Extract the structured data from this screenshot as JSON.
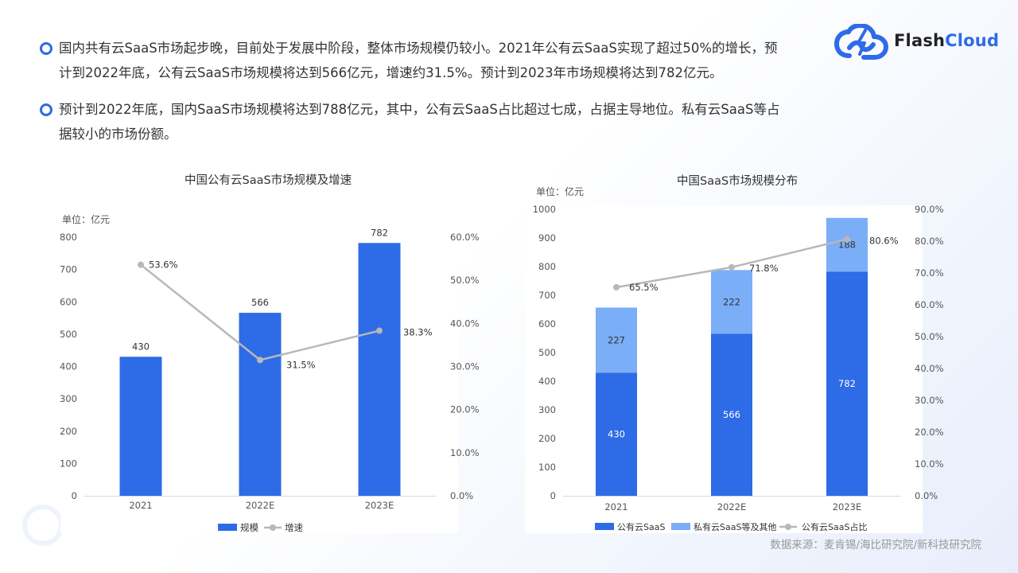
{
  "bullets": [
    {
      "line1": "国内共有云SaaS市场起步晚，目前处于发展中阶段，整体市场规模仍较小。2021年公有云SaaS实现了超过50%的增长，预",
      "line2": "计到2022年底，公有云SaaS市场规模将达到566亿元，增速约31.5%。预计到2023年市场规模将达到782亿元。"
    },
    {
      "line1": "预计到2022年底，国内SaaS市场规模将达到788亿元，其中，公有云SaaS占比超过七成，占据主导地位。私有云SaaS等占",
      "line2": "据较小的市场份额。"
    }
  ],
  "logo": {
    "part1": "Flash",
    "part2": "Cloud"
  },
  "source": "数据来源：麦肯锡/海比研究院/新科技研究院",
  "colors": {
    "primary": "#2e6be6",
    "secondary": "#7aaef7",
    "line": "#b8b8b8",
    "text": "#333333"
  },
  "chart_data": [
    {
      "type": "bar",
      "title": "中国公有云SaaS市场规模及增速",
      "unit": "单位：亿元",
      "categories": [
        "2021",
        "2022E",
        "2023E"
      ],
      "series": [
        {
          "name": "规模",
          "type": "bar",
          "values": [
            430,
            566,
            782
          ],
          "labels": [
            "430",
            "566",
            "782"
          ]
        },
        {
          "name": "增速",
          "type": "line",
          "axis": "right",
          "values": [
            53.6,
            31.5,
            38.3
          ],
          "labels": [
            "53.6%",
            "31.5%",
            "38.3%"
          ]
        }
      ],
      "ylim": [
        0,
        800
      ],
      "yticks": [
        "0",
        "100",
        "200",
        "300",
        "400",
        "500",
        "600",
        "700",
        "800"
      ],
      "y2lim": [
        0,
        60
      ],
      "y2ticks": [
        "0.0%",
        "10.0%",
        "20.0%",
        "30.0%",
        "40.0%",
        "50.0%",
        "60.0%"
      ],
      "legend": "bottom",
      "grid": false
    },
    {
      "type": "bar",
      "stacked": true,
      "title": "中国SaaS市场规模分布",
      "unit": "单位：亿元",
      "categories": [
        "2021",
        "2022E",
        "2023E"
      ],
      "series": [
        {
          "name": "公有云SaaS",
          "type": "bar",
          "values": [
            430,
            566,
            782
          ],
          "labels": [
            "430",
            "566",
            "782"
          ]
        },
        {
          "name": "私有云SaaS等及其他",
          "type": "bar",
          "values": [
            227,
            222,
            188
          ],
          "labels": [
            "227",
            "222",
            "188"
          ]
        },
        {
          "name": "公有云SaaS占比",
          "type": "line",
          "axis": "right",
          "values": [
            65.5,
            71.8,
            80.6
          ],
          "labels": [
            "65.5%",
            "71.8%",
            "80.6%"
          ]
        }
      ],
      "ylim": [
        0,
        1000
      ],
      "yticks": [
        "0",
        "100",
        "200",
        "300",
        "400",
        "500",
        "600",
        "700",
        "800",
        "900",
        "1000"
      ],
      "y2lim": [
        0,
        90
      ],
      "y2ticks": [
        "0.0%",
        "10.0%",
        "20.0%",
        "30.0%",
        "40.0%",
        "50.0%",
        "60.0%",
        "70.0%",
        "80.0%",
        "90.0%"
      ],
      "legend": "bottom",
      "grid": false
    }
  ]
}
